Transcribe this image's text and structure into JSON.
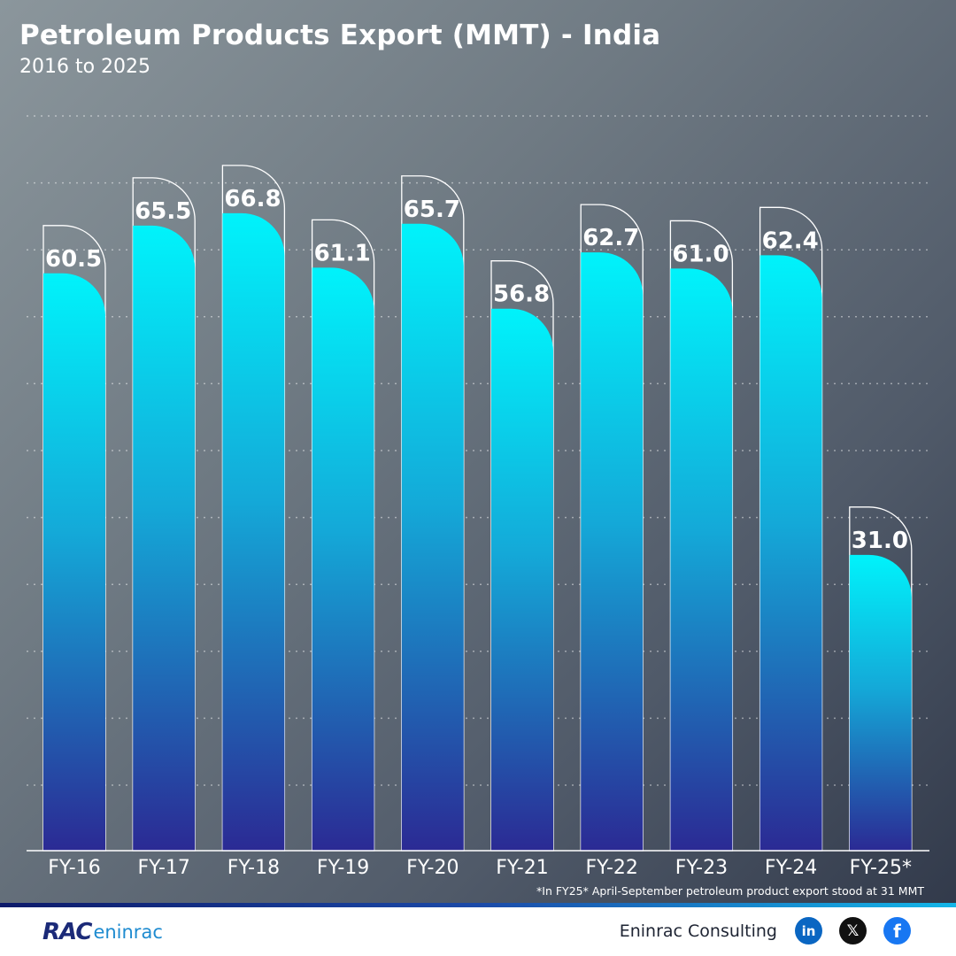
{
  "chart_data": {
    "type": "bar",
    "title": "Petroleum Products Export (MMT) - India",
    "subtitle": "2016 to 2025",
    "categories": [
      "FY-16",
      "FY-17",
      "FY-18",
      "FY-19",
      "FY-20",
      "FY-21",
      "FY-22",
      "FY-23",
      "FY-24",
      "FY-25*"
    ],
    "values": [
      60.5,
      65.5,
      66.8,
      61.1,
      65.7,
      56.8,
      62.7,
      61.0,
      62.4,
      31.0
    ],
    "value_labels": [
      "60.5",
      "65.5",
      "66.8",
      "61.1",
      "65.7",
      "56.8",
      "62.7",
      "61.0",
      "62.4",
      "31.0"
    ],
    "xlabel": "",
    "ylabel": "",
    "ylim": [
      0,
      72
    ],
    "grid": true,
    "annotation": "*In FY25* April-September petroleum product export stood at 31 MMT"
  },
  "colors": {
    "bar_top": "#00f3fb",
    "bar_bottom": "#2b2a94",
    "outline": "#ffffff"
  },
  "footer": {
    "logo_mark": "RAC",
    "logo_text": "eninrac",
    "company": "Eninrac Consulting",
    "icons": [
      "linkedin-icon",
      "x-icon",
      "facebook-icon"
    ],
    "linkedin_glyph": "in",
    "x_glyph": "𝕏",
    "facebook_glyph": "f"
  }
}
